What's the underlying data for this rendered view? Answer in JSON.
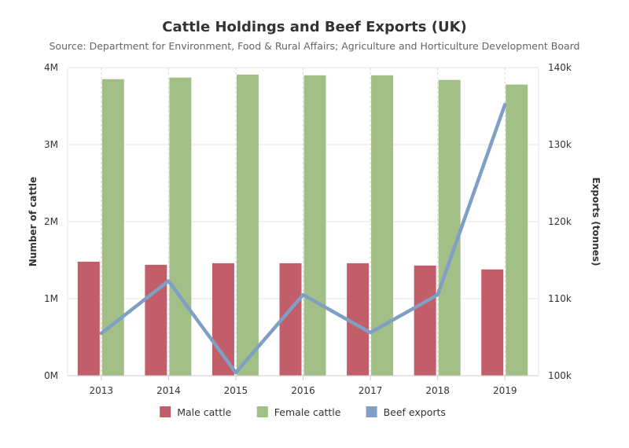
{
  "chart_data": {
    "type": "bar",
    "title": "Cattle Holdings and Beef Exports (UK)",
    "subtitle": "Source: Department for Environment, Food & Rural Affairs; Agriculture and Horticulture Development Board",
    "categories": [
      "2013",
      "2014",
      "2015",
      "2016",
      "2017",
      "2018",
      "2019"
    ],
    "y_left": {
      "title": "Number of cattle",
      "range": [
        0,
        4000000
      ],
      "ticks": [
        0,
        1000000,
        2000000,
        3000000,
        4000000
      ],
      "tick_labels": [
        "0M",
        "1M",
        "2M",
        "3M",
        "4M"
      ]
    },
    "y_right": {
      "title": "Exports (tonnes)",
      "range": [
        100000,
        140000
      ],
      "ticks": [
        100000,
        110000,
        120000,
        130000,
        140000
      ],
      "tick_labels": [
        "100k",
        "110k",
        "120k",
        "130k",
        "140k"
      ]
    },
    "grid": true,
    "legend_position": "bottom-center",
    "series": [
      {
        "name": "Male cattle",
        "type": "bar",
        "axis": "left",
        "color": "#c25e6a",
        "values": [
          1480000,
          1440000,
          1460000,
          1460000,
          1460000,
          1430000,
          1380000
        ]
      },
      {
        "name": "Female cattle",
        "type": "bar",
        "axis": "left",
        "color": "#a2bf88",
        "values": [
          3850000,
          3870000,
          3910000,
          3900000,
          3900000,
          3840000,
          3780000
        ]
      },
      {
        "name": "Beef exports",
        "type": "line",
        "axis": "right",
        "color": "#7f9fc4",
        "values": [
          105500,
          112300,
          100400,
          110500,
          105600,
          110500,
          135200
        ]
      }
    ]
  }
}
